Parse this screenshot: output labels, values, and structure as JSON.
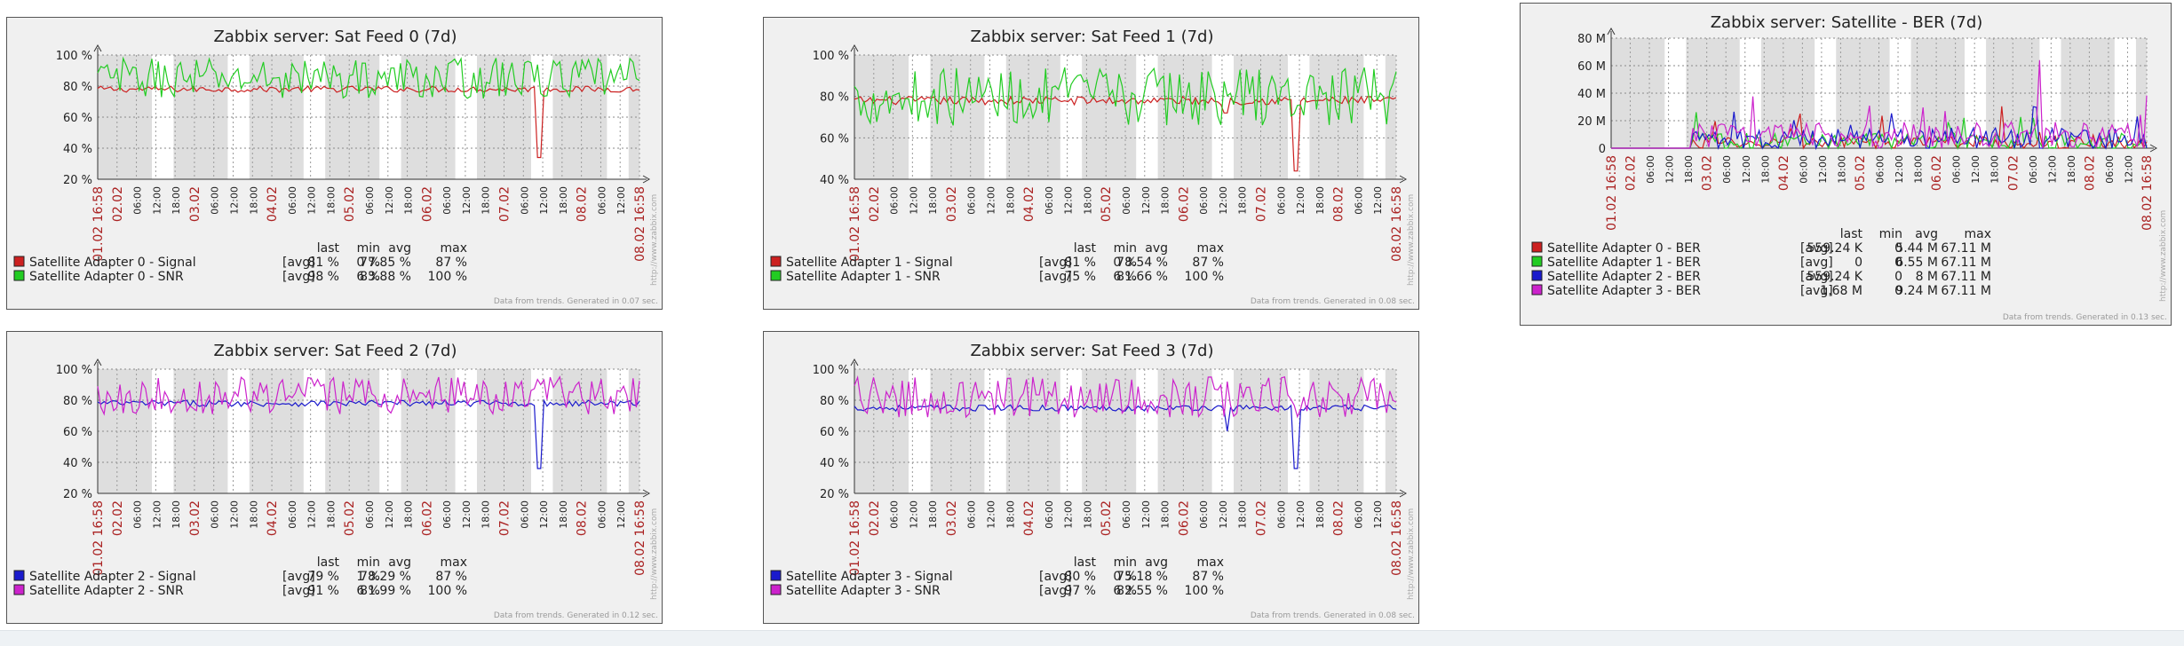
{
  "colors": {
    "red": "#cc2020",
    "green": "#22cc22",
    "blue": "#1a1acc",
    "magenta": "#cc22cc",
    "border": "#555555",
    "grid_dark": "#dedede",
    "grid_light": "#ffffff",
    "date_label": "#aa2222",
    "text": "#222222"
  },
  "legend_headers": {
    "last": "last",
    "min": "min",
    "avg": "avg",
    "max": "max"
  },
  "x_labels": [
    "01.02 16:58",
    "02.02",
    "06:00",
    "12:00",
    "18:00",
    "03.02",
    "06:00",
    "12:00",
    "18:00",
    "04.02",
    "06:00",
    "12:00",
    "18:00",
    "05.02",
    "06:00",
    "12:00",
    "18:00",
    "06.02",
    "06:00",
    "12:00",
    "18:00",
    "07.02",
    "06:00",
    "12:00",
    "18:00",
    "08.02",
    "06:00",
    "12:00",
    "08.02 16:58"
  ],
  "watermark": "http://www.zabbix.com",
  "chart_data": [
    {
      "type": "line",
      "title": "Zabbix server: Sat Feed 0 (7d)",
      "y_ticks": [
        "20 %",
        "40 %",
        "60 %",
        "80 %",
        "100 %"
      ],
      "ylim": [
        20,
        100
      ],
      "series": [
        {
          "name": "Satellite Adapter 0 - Signal",
          "color": "#cc2020",
          "func": "[avg]",
          "last": "81 %",
          "min": "0 %",
          "avg": "77.85 %",
          "max": "87 %",
          "baseline": 78,
          "noise": 2,
          "dips": [
            [
              0.815,
              34
            ]
          ]
        },
        {
          "name": "Satellite Adapter 0 - SNR",
          "color": "#22cc22",
          "func": "[avg]",
          "last": "98 %",
          "min": "6 %",
          "avg": "83.88 %",
          "max": "100 %",
          "baseline": 85,
          "noise": 13,
          "dips": []
        }
      ],
      "footer": "Data from trends. Generated in 0.07 sec."
    },
    {
      "type": "line",
      "title": "Zabbix server: Sat Feed 1 (7d)",
      "y_ticks": [
        "40 %",
        "60 %",
        "80 %",
        "100 %"
      ],
      "ylim": [
        40,
        100
      ],
      "series": [
        {
          "name": "Satellite Adapter 1 - Signal",
          "color": "#cc2020",
          "func": "[avg]",
          "last": "81 %",
          "min": "0 %",
          "avg": "78.54 %",
          "max": "87 %",
          "baseline": 78,
          "noise": 2,
          "dips": [
            [
              0.815,
              44
            ],
            [
              0.685,
              72
            ]
          ]
        },
        {
          "name": "Satellite Adapter 1 - SNR",
          "color": "#22cc22",
          "func": "[avg]",
          "last": "75 %",
          "min": "6 %",
          "avg": "81.66 %",
          "max": "100 %",
          "baseline": 80,
          "noise": 14,
          "dips": []
        }
      ],
      "footer": "Data from trends. Generated in 0.08 sec."
    },
    {
      "type": "line",
      "title": "Zabbix server: Satellite - BER (7d)",
      "y_ticks": [
        "0",
        "20 M",
        "40 M",
        "60 M",
        "80 M"
      ],
      "ylim": [
        0,
        80
      ],
      "series": [
        {
          "name": "Satellite Adapter 0 - BER",
          "color": "#cc2020",
          "func": "[avg]",
          "last": "559.24 K",
          "min": "0",
          "avg": "5.44 M",
          "max": "67.11 M",
          "baseline": 4,
          "noise": 5,
          "dips": []
        },
        {
          "name": "Satellite Adapter 1 - BER",
          "color": "#22cc22",
          "func": "[avg]",
          "last": "0",
          "min": "0",
          "avg": "6.55 M",
          "max": "67.11 M",
          "baseline": 5,
          "noise": 6,
          "dips": []
        },
        {
          "name": "Satellite Adapter 2 - BER",
          "color": "#1a1acc",
          "func": "[avg]",
          "last": "559.24 K",
          "min": "0",
          "avg": "8 M",
          "max": "67.11 M",
          "baseline": 7,
          "noise": 8,
          "dips": []
        },
        {
          "name": "Satellite Adapter 3 - BER",
          "color": "#cc22cc",
          "func": "[avg]",
          "last": "1.68 M",
          "min": "0",
          "avg": "9.24 M",
          "max": "67.11 M",
          "baseline": 9,
          "noise": 10,
          "dips": [
            [
              0.8,
              64
            ]
          ]
        }
      ],
      "footer": "Data from trends. Generated in 0.13 sec."
    },
    {
      "type": "line",
      "title": "Zabbix server: Sat Feed 2 (7d)",
      "y_ticks": [
        "20 %",
        "40 %",
        "60 %",
        "80 %",
        "100 %"
      ],
      "ylim": [
        20,
        100
      ],
      "series": [
        {
          "name": "Satellite Adapter 2 - Signal",
          "color": "#1a1acc",
          "func": "[avg]",
          "last": "79 %",
          "min": "1 %",
          "avg": "78.29 %",
          "max": "87 %",
          "baseline": 78,
          "noise": 2,
          "dips": [
            [
              0.815,
              36
            ]
          ]
        },
        {
          "name": "Satellite Adapter 2 - SNR",
          "color": "#cc22cc",
          "func": "[avg]",
          "last": "91 %",
          "min": "6 %",
          "avg": "81.99 %",
          "max": "100 %",
          "baseline": 83,
          "noise": 12,
          "dips": []
        }
      ],
      "footer": "Data from trends. Generated in 0.12 sec."
    },
    {
      "type": "line",
      "title": "Zabbix server: Sat Feed 3 (7d)",
      "y_ticks": [
        "20 %",
        "40 %",
        "60 %",
        "80 %",
        "100 %"
      ],
      "ylim": [
        20,
        100
      ],
      "series": [
        {
          "name": "Satellite Adapter 3 - Signal",
          "color": "#1a1acc",
          "func": "[avg]",
          "last": "80 %",
          "min": "0 %",
          "avg": "75.18 %",
          "max": "87 %",
          "baseline": 75,
          "noise": 2,
          "dips": [
            [
              0.815,
              36
            ],
            [
              0.69,
              60
            ]
          ]
        },
        {
          "name": "Satellite Adapter 3 - SNR",
          "color": "#cc22cc",
          "func": "[avg]",
          "last": "97 %",
          "min": "6 %",
          "avg": "82.55 %",
          "max": "100 %",
          "baseline": 82,
          "noise": 13,
          "dips": []
        }
      ],
      "footer": "Data from trends. Generated in 0.08 sec."
    }
  ]
}
